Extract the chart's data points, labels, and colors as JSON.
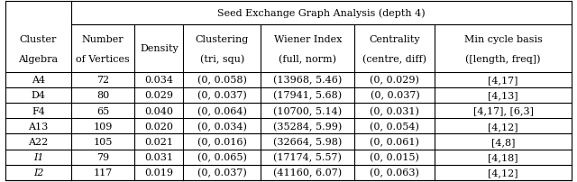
{
  "title": "Seed Exchange Graph Analysis (depth 4)",
  "rows": [
    [
      "A4",
      "72",
      "0.034",
      "(0, 0.058)",
      "(13968, 5.46)",
      "(0, 0.029)",
      "[4,17]"
    ],
    [
      "D4",
      "80",
      "0.029",
      "(0, 0.037)",
      "(17941, 5.68)",
      "(0, 0.037)",
      "[4,13]"
    ],
    [
      "F4",
      "65",
      "0.040",
      "(0, 0.064)",
      "(10700, 5.14)",
      "(0, 0.031)",
      "[4,17], [6,3]"
    ],
    [
      "A13",
      "109",
      "0.020",
      "(0, 0.034)",
      "(35284, 5.99)",
      "(0, 0.054)",
      "[4,12]"
    ],
    [
      "A22",
      "105",
      "0.021",
      "(0, 0.016)",
      "(32664, 5.98)",
      "(0, 0.061)",
      "[4,8]"
    ],
    [
      "I1",
      "79",
      "0.031",
      "(0, 0.065)",
      "(17174, 5.57)",
      "(0, 0.015)",
      "[4,18]"
    ],
    [
      "I2",
      "117",
      "0.019",
      "(0, 0.037)",
      "(41160, 6.07)",
      "(0, 0.063)",
      "[4,12]"
    ]
  ],
  "italic_rows": [
    5,
    6
  ],
  "figsize": [
    6.4,
    2.03
  ],
  "dpi": 100,
  "font_size": 8.0
}
